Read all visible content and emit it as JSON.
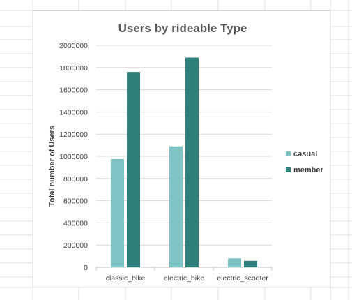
{
  "chart_data": {
    "type": "bar",
    "title": "Users by rideable Type",
    "xlabel": "",
    "ylabel": "Total number of Users",
    "categories": [
      "classic_bike",
      "electric_bike",
      "electric_scooter"
    ],
    "series": [
      {
        "name": "casual",
        "values": [
          975000,
          1090000,
          80000
        ],
        "color": "#7fc4c4"
      },
      {
        "name": "member",
        "values": [
          1760000,
          1890000,
          58000
        ],
        "color": "#2f7f7b"
      }
    ],
    "ylim": [
      0,
      2000000
    ],
    "yticks": [
      "0",
      "200000",
      "400000",
      "600000",
      "800000",
      "1000000",
      "1200000",
      "1400000",
      "1600000",
      "1800000",
      "2000000"
    ],
    "grid": true,
    "legend_position": "right",
    "colors": {
      "gridline": "#d9d9d9",
      "axis": "#bfbfbf",
      "title": "#595959"
    }
  }
}
